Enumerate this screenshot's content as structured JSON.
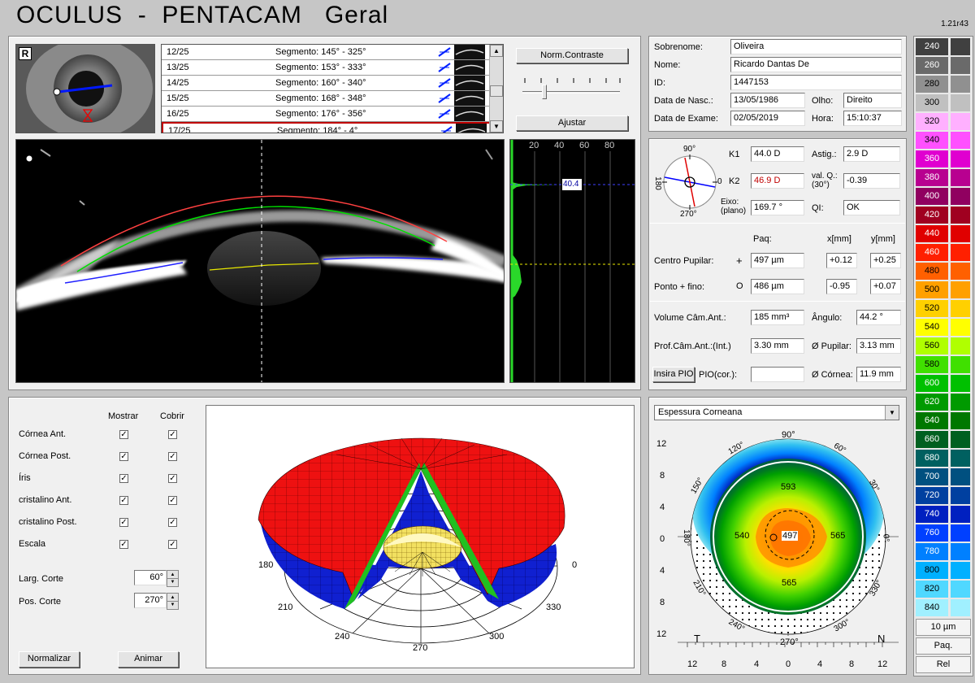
{
  "header": {
    "title": "OCULUS  -  PENTACAM   Geral",
    "version": "1.21r43"
  },
  "eye_image": {
    "label": "R"
  },
  "scan_list": [
    {
      "index": "12/25",
      "segment": "Segmento: 145° - 325°"
    },
    {
      "index": "13/25",
      "segment": "Segmento: 153° - 333°"
    },
    {
      "index": "14/25",
      "segment": "Segmento: 160° - 340°"
    },
    {
      "index": "15/25",
      "segment": "Segmento: 168° - 348°"
    },
    {
      "index": "16/25",
      "segment": "Segmento: 176° - 356°"
    },
    {
      "index": "17/25",
      "segment": "Segmento: 184° - 4°"
    }
  ],
  "controls": {
    "norm_contrast": "Norm.Contraste",
    "adjust": "Ajustar"
  },
  "density": {
    "ticks": [
      "20",
      "40",
      "60",
      "80"
    ],
    "marker_value": "40.4"
  },
  "patient": {
    "surname_label": "Sobrenome:",
    "surname": "Oliveira",
    "name_label": "Nome:",
    "name": "Ricardo Dantas De",
    "id_label": "ID:",
    "id": "1447153",
    "dob_label": "Data de Nasc.:",
    "dob": "13/05/1986",
    "eye_label": "Olho:",
    "eye": "Direito",
    "exam_label": "Data de Exame:",
    "exam_date": "02/05/2019",
    "time_label": "Hora:",
    "time": "15:10:37"
  },
  "keratometry": {
    "k1_label": "K1",
    "k1": "44.0 D",
    "k2_label": "K2",
    "k2": "46.9 D",
    "axis_label": "Eixo:\n(plano)",
    "axis": "169.7 °",
    "astig_label": "Astig.:",
    "astig": "2.9 D",
    "q_label": "val. Q.:\n(30°)",
    "q": "-0.39",
    "qi_label": "QI:",
    "qi": "OK",
    "dial": {
      "top": "90°",
      "bottom": "270°",
      "left": "180",
      "right": "0"
    }
  },
  "pachy": {
    "col_paq": "Paq:",
    "col_x": "x[mm]",
    "col_y": "y[mm]",
    "pupil_label": "Centro Pupilar:",
    "pupil_symbol": "+",
    "pupil_paq": "497 µm",
    "pupil_x": "+0.12",
    "pupil_y": "+0.25",
    "thin_label": "Ponto + fino:",
    "thin_symbol": "O",
    "thin_paq": "486 µm",
    "thin_x": "-0.95",
    "thin_y": "+0.07"
  },
  "chamber": {
    "volume_label": "Volume Câm.Ant.:",
    "volume": "185 mm³",
    "angle_label": "Ângulo:",
    "angle": "44.2 °",
    "depth_label": "Prof.Câm.Ant.:(Int.)",
    "depth": "3.30 mm",
    "pupil_dia_label": "Ø Pupilar:",
    "pupil_dia": "3.13 mm",
    "iop_button": "Insira PIO",
    "iop_label": "PIO(cor.):",
    "iop": "",
    "cornea_label": "Ø Córnea:",
    "cornea": "11.9 mm"
  },
  "layers": {
    "show_header": "Mostrar",
    "cover_header": "Cobrir",
    "items": [
      "Córnea Ant.",
      "Córnea Post.",
      "Íris",
      "cristalino Ant.",
      "cristalino Post.",
      "Escala"
    ],
    "check": "✓"
  },
  "cut": {
    "width_label": "Larg. Corte",
    "width": "60°",
    "pos_label": "Pos. Corte",
    "pos": "270°"
  },
  "buttons": {
    "normalize": "Normalizar",
    "animate": "Animar"
  },
  "view3d": {
    "angles": [
      "180",
      "210",
      "240",
      "270",
      "300",
      "330",
      "0"
    ]
  },
  "map": {
    "dropdown": "Espessura Corneana",
    "y_ticks": [
      "12",
      "8",
      "4",
      "0",
      "4",
      "8",
      "12"
    ],
    "x_ticks": [
      "12",
      "8",
      "4",
      "0",
      "4",
      "8",
      "12"
    ],
    "angles": [
      "90°",
      "60°",
      "30°",
      "0°",
      "330°",
      "300°",
      "270°",
      "240°",
      "210°",
      "180°",
      "150°",
      "120°"
    ],
    "values": {
      "top": "593",
      "left": "540",
      "center": "497",
      "right": "565",
      "bottom": "565"
    },
    "corner_t": "T",
    "corner_n": "N"
  },
  "color_scale": {
    "entries": [
      {
        "v": "240",
        "c": "#404040"
      },
      {
        "v": "260",
        "c": "#6a6a6a"
      },
      {
        "v": "280",
        "c": "#909090"
      },
      {
        "v": "300",
        "c": "#c0c0c0"
      },
      {
        "v": "320",
        "c": "#ffb0ff"
      },
      {
        "v": "340",
        "c": "#ff50ff"
      },
      {
        "v": "360",
        "c": "#e000d0"
      },
      {
        "v": "380",
        "c": "#b80090"
      },
      {
        "v": "400",
        "c": "#900060"
      },
      {
        "v": "420",
        "c": "#a00020"
      },
      {
        "v": "440",
        "c": "#e00000"
      },
      {
        "v": "460",
        "c": "#ff2000"
      },
      {
        "v": "480",
        "c": "#ff6000"
      },
      {
        "v": "500",
        "c": "#ffa000"
      },
      {
        "v": "520",
        "c": "#ffd000"
      },
      {
        "v": "540",
        "c": "#ffff00"
      },
      {
        "v": "560",
        "c": "#b0ff00"
      },
      {
        "v": "580",
        "c": "#40e000"
      },
      {
        "v": "600",
        "c": "#00c000"
      },
      {
        "v": "620",
        "c": "#009a00"
      },
      {
        "v": "640",
        "c": "#007800"
      },
      {
        "v": "660",
        "c": "#006020"
      },
      {
        "v": "680",
        "c": "#006060"
      },
      {
        "v": "700",
        "c": "#005080"
      },
      {
        "v": "720",
        "c": "#0040a0"
      },
      {
        "v": "740",
        "c": "#0020c0"
      },
      {
        "v": "760",
        "c": "#0040ff"
      },
      {
        "v": "780",
        "c": "#0080ff"
      },
      {
        "v": "800",
        "c": "#00b0ff"
      },
      {
        "v": "820",
        "c": "#50d8ff"
      },
      {
        "v": "840",
        "c": "#a0f0ff"
      }
    ],
    "unit": "10 µm",
    "mode": "Paq.",
    "rel": "Rel"
  }
}
